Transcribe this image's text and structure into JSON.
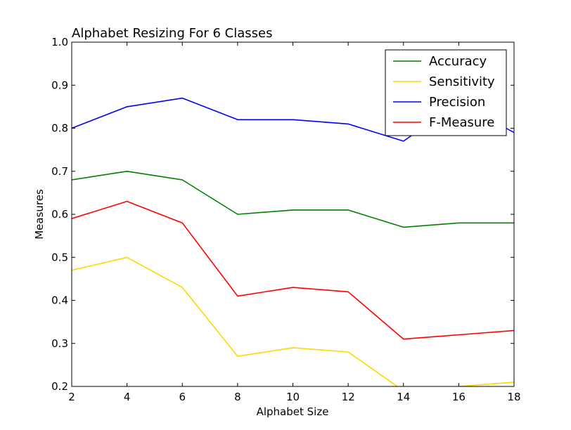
{
  "chart_data": {
    "type": "line",
    "title": "Alphabet Resizing For 6 Classes",
    "xlabel": "Alphabet Size",
    "ylabel": "Measures",
    "x": [
      2,
      4,
      6,
      8,
      10,
      12,
      14,
      16,
      18
    ],
    "xlim": [
      2,
      18
    ],
    "ylim": [
      0.2,
      1.0
    ],
    "xticks": [
      "2",
      "4",
      "6",
      "8",
      "10",
      "12",
      "14",
      "16",
      "18"
    ],
    "yticks": [
      "0.2",
      "0.3",
      "0.4",
      "0.5",
      "0.6",
      "0.7",
      "0.8",
      "0.9",
      "1.0"
    ],
    "grid": false,
    "legend_position": "top-right",
    "series": [
      {
        "name": "Accuracy",
        "color": "#008000",
        "values": [
          0.68,
          0.7,
          0.68,
          0.6,
          0.61,
          0.61,
          0.57,
          0.58,
          0.58
        ]
      },
      {
        "name": "Sensitivity",
        "color": "#FFD700",
        "values": [
          0.47,
          0.5,
          0.43,
          0.27,
          0.29,
          0.28,
          0.19,
          0.2,
          0.21
        ]
      },
      {
        "name": "Precision",
        "color": "#0000FF",
        "values": [
          0.8,
          0.85,
          0.87,
          0.82,
          0.82,
          0.81,
          0.77,
          0.86,
          0.79
        ]
      },
      {
        "name": "F-Measure",
        "color": "#FF0000",
        "values": [
          0.59,
          0.63,
          0.58,
          0.41,
          0.43,
          0.42,
          0.31,
          0.32,
          0.33
        ]
      }
    ]
  }
}
